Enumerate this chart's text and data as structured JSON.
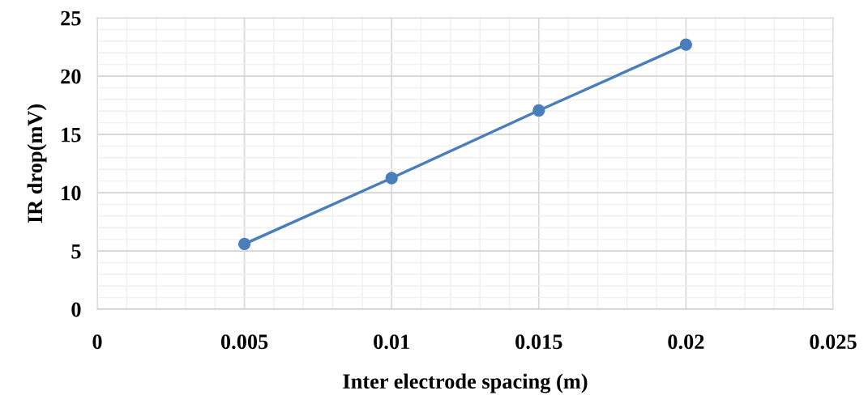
{
  "chart_data": {
    "type": "line",
    "xlabel": "Inter electrode spacing (m)",
    "ylabel": "IR drop(mV)",
    "x": [
      0.005,
      0.01,
      0.015,
      0.02
    ],
    "series": [
      {
        "color": "#4a7ebb",
        "values": [
          5.6,
          11.25,
          17.05,
          22.7
        ]
      }
    ],
    "xlim": [
      0,
      0.025
    ],
    "xticks": [
      0,
      0.005,
      0.01,
      0.015,
      0.02,
      0.025
    ],
    "ylim": [
      0,
      25
    ],
    "yticks": [
      0,
      5,
      10,
      15,
      20,
      25
    ],
    "grid": true,
    "marker": "circle",
    "line_style": "solid",
    "legend": false
  }
}
